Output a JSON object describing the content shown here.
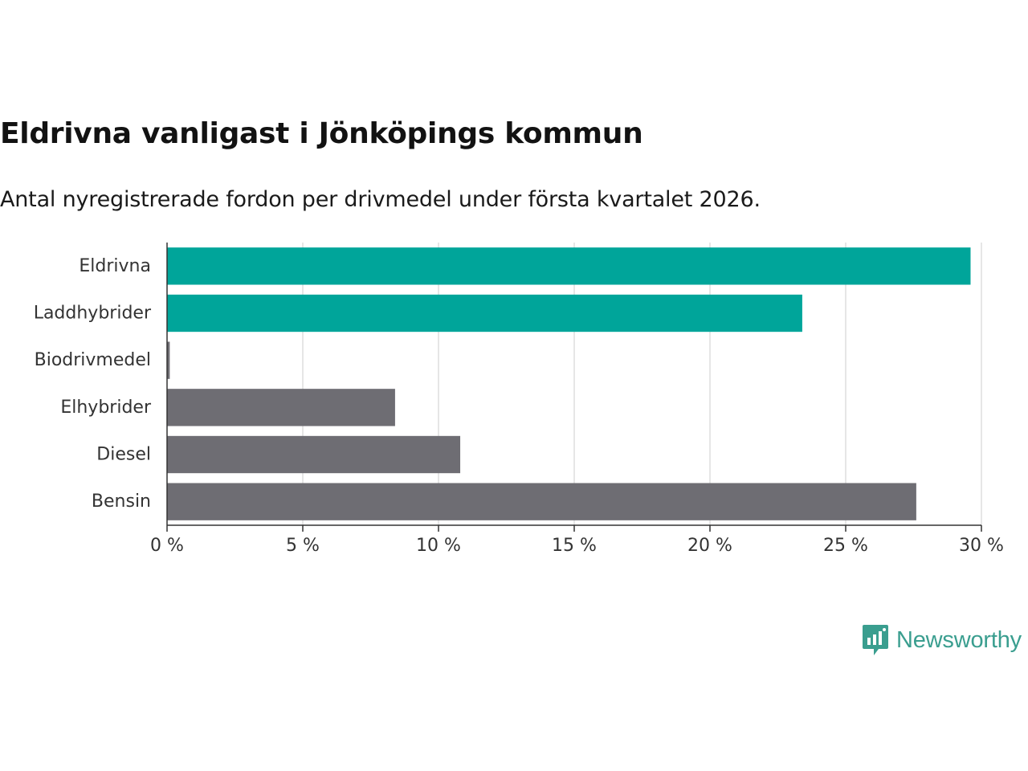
{
  "title": "Eldrivna vanligast i Jönköpings kommun",
  "subtitle": "Antal nyregistrerade fordon per drivmedel under första kvartalet 2026.",
  "brand": {
    "name": "Newsworthy",
    "color": "#3a9e8f"
  },
  "colors": {
    "highlight": "#00a59a",
    "default": "#6e6d73",
    "grid": "#dddddd",
    "axis": "#333333"
  },
  "chart_data": {
    "type": "bar",
    "orientation": "horizontal",
    "title": "Eldrivna vanligast i Jönköpings kommun",
    "subtitle": "Antal nyregistrerade fordon per drivmedel under första kvartalet 2026.",
    "xlabel": "",
    "ylabel": "",
    "xlim": [
      0,
      30
    ],
    "grid": true,
    "categories": [
      "Eldrivna",
      "Laddhybrider",
      "Biodrivmedel",
      "Elhybrider",
      "Diesel",
      "Bensin"
    ],
    "values": [
      29.6,
      23.4,
      0.1,
      8.4,
      10.8,
      27.6
    ],
    "highlighted": [
      true,
      true,
      false,
      false,
      false,
      false
    ],
    "ticks": [
      0,
      5,
      10,
      15,
      20,
      25,
      30
    ],
    "tick_labels": [
      "0 %",
      "5 %",
      "10 %",
      "15 %",
      "20 %",
      "25 %",
      "30 %"
    ]
  }
}
